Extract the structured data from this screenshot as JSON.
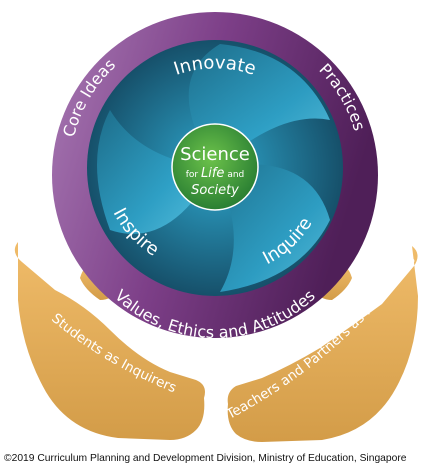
{
  "outer_ring": {
    "left_label": "Core Ideas",
    "right_label": "Practices",
    "bottom_label": "Values, Ethics and Attitudes"
  },
  "inner_ring": {
    "top_label": "Innovate",
    "left_label": "Inspire",
    "right_label": "Inquire"
  },
  "center": {
    "title": "Science",
    "line2_prefix": "for",
    "line2_italic": "Life",
    "line2_suffix": "and",
    "line3_italic": "Society"
  },
  "hands": {
    "left_label": "Students as Inquirers",
    "right_label": "Teachers and Partners as Facilitators"
  },
  "footer": {
    "copyright": "©2019 Curriculum Planning and Development Division, Ministry of Education, Singapore"
  },
  "colors": {
    "outer_ring_light": "#a87ab4",
    "outer_ring_dark": "#5a2763",
    "inner_teal_light": "#3bb3d6",
    "inner_teal_dark": "#1b5c72",
    "center_green": "#3a9a3f",
    "hands": "#e0a956"
  }
}
